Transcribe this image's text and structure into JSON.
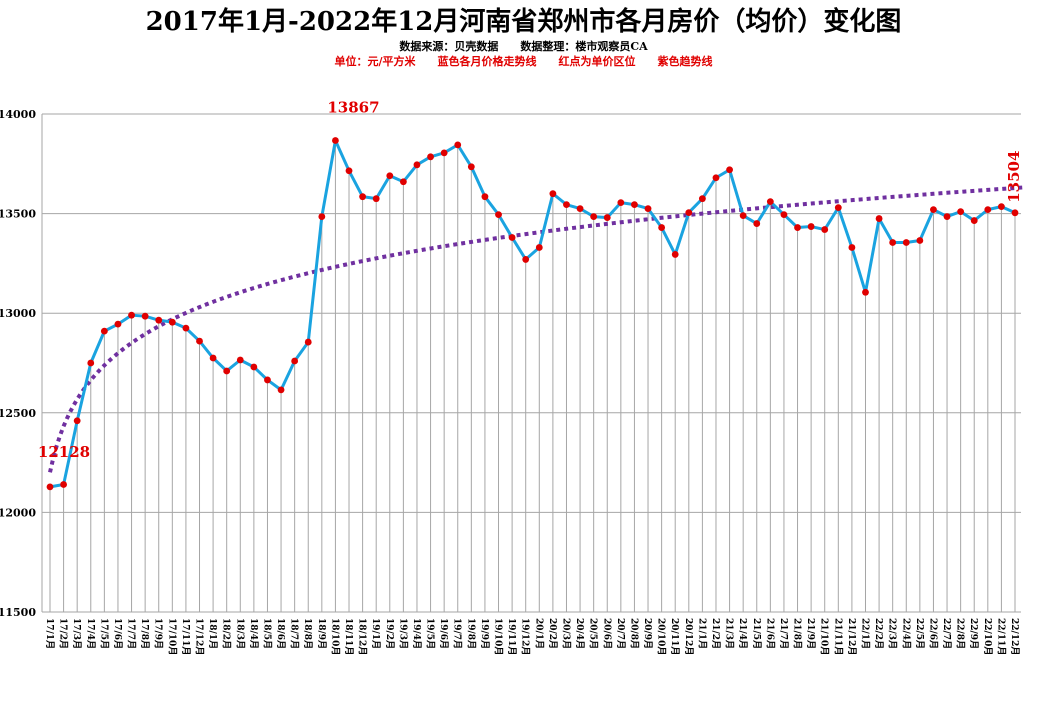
{
  "chart_data": {
    "type": "line",
    "title": "2017年1月-2022年12月河南省郑州市各月房价（均价）变化图",
    "subtitle": "数据来源：贝壳数据　　数据整理：楼市观察员CA",
    "note": "单位：元/平方米　　蓝色各月价格走势线　　红点为单价区位　　紫色趋势线",
    "ylim": [
      11500,
      14000
    ],
    "yticks": [
      "11500",
      "12000",
      "12500",
      "13000",
      "13500",
      "14000"
    ],
    "xlabel": "",
    "ylabel": "",
    "grid": true,
    "categories": [
      "17/1月",
      "17/2月",
      "17/3月",
      "17/4月",
      "17/5月",
      "17/6月",
      "17/7月",
      "17/8月",
      "17/9月",
      "17/10月",
      "17/11月",
      "17/12月",
      "18/1月",
      "18/2月",
      "18/3月",
      "18/4月",
      "18/5月",
      "18/6月",
      "18/7月",
      "18/8月",
      "18/9月",
      "18/10月",
      "18/11月",
      "18/12月",
      "19/1月",
      "19/2月",
      "19/3月",
      "19/4月",
      "19/5月",
      "19/6月",
      "19/7月",
      "19/8月",
      "19/9月",
      "19/10月",
      "19/11月",
      "19/12月",
      "20/1月",
      "20/2月",
      "20/3月",
      "20/4月",
      "20/5月",
      "20/6月",
      "20/7月",
      "20/8月",
      "20/9月",
      "20/10月",
      "20/11月",
      "20/12月",
      "21/1月",
      "21/2月",
      "21/3月",
      "21/4月",
      "21/5月",
      "21/6月",
      "21/7月",
      "21/8月",
      "21/9月",
      "21/10月",
      "21/11月",
      "21/12月",
      "22/1月",
      "22/2月",
      "22/3月",
      "22/4月",
      "22/5月",
      "22/6月",
      "22/7月",
      "22/8月",
      "22/9月",
      "22/10月",
      "22/11月",
      "22/12月"
    ],
    "series": [
      {
        "values": [
          12128,
          12140,
          12460,
          12750,
          12910,
          12945,
          12990,
          12985,
          12965,
          12955,
          12925,
          12860,
          12775,
          12710,
          12765,
          12730,
          12665,
          12615,
          12760,
          12855,
          13485,
          13867,
          13715,
          13585,
          13575,
          13690,
          13660,
          13745,
          13785,
          13805,
          13845,
          13735,
          13585,
          13495,
          13380,
          13270,
          13330,
          13600,
          13545,
          13525,
          13485,
          13480,
          13555,
          13545,
          13525,
          13430,
          13295,
          13505,
          13575,
          13680,
          13720,
          13490,
          13450,
          13560,
          13495,
          13430,
          13435,
          13420,
          13530,
          13330,
          13105,
          13475,
          13355,
          13355,
          13365,
          13520,
          13485,
          13510,
          13465,
          13520,
          13535,
          13504
        ],
        "line_color": "#1aa3e0",
        "marker_color": "#e00000"
      }
    ],
    "trend": {
      "type": "logarithmic",
      "color": "#7030a0",
      "style": "dotted"
    },
    "annotations": [
      {
        "index": 0,
        "text": "12128",
        "color": "#e00000"
      },
      {
        "index": 21,
        "text": "13867",
        "color": "#e00000"
      },
      {
        "index": 71,
        "text": "13504",
        "color": "#e00000",
        "rotated": true
      }
    ]
  }
}
